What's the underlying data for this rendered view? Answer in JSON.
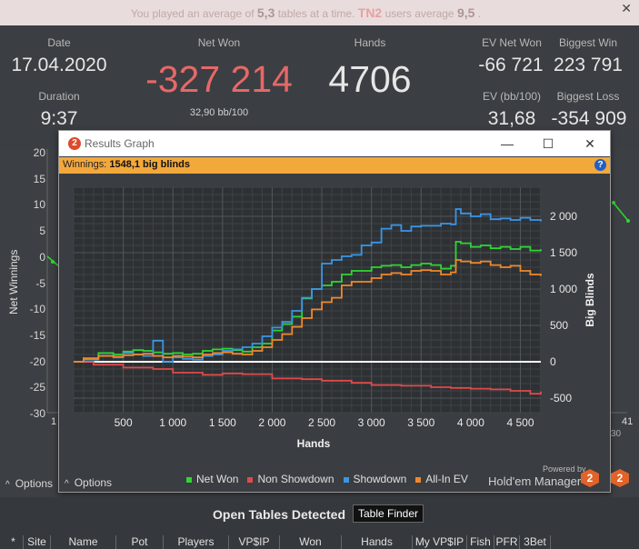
{
  "notice": {
    "prefix": "You played an average of",
    "avg_tables": "5,3",
    "middle": "tables at a time.",
    "site": "TN2",
    "suffix": "users average",
    "site_avg": "9,5",
    "end": ".",
    "close_glyph": "✕"
  },
  "stats": {
    "date_label": "Date",
    "date_value": "17.04.2020",
    "duration_label": "Duration",
    "duration_value": "9:37",
    "net_won_label": "Net Won",
    "net_won_value": "-327 214",
    "net_won_bb": "32,90 bb/100",
    "hands_label": "Hands",
    "hands_value": "4706",
    "ev_net_won_label": "EV Net Won",
    "ev_net_won_value": "-66 721",
    "ev_bb_label": "EV (bb/100)",
    "ev_bb_value": "31,68",
    "biggest_win_label": "Biggest Win",
    "biggest_win_value": "223 791",
    "biggest_loss_label": "Biggest Loss",
    "biggest_loss_value": "-354 909"
  },
  "background_graph": {
    "ylabel": "Net Winnings",
    "yticks": [
      "20",
      "15",
      "10",
      "5",
      "0",
      "-5",
      "-10",
      "-15",
      "-20",
      "-25",
      "-30"
    ],
    "x_first": "1",
    "x_last": "41",
    "x_last_partial": "30",
    "options_label": "Options"
  },
  "modal": {
    "title": "Results Graph",
    "badge": "2",
    "minimize": "—",
    "maximize": "☐",
    "close": "✕",
    "winnings_label": "Winnings:",
    "winnings_value": "1548,1 big blinds",
    "help": "?",
    "options_label": "Options",
    "powered_by": "Powered by",
    "brand": "Hold'em Manager",
    "brand_badge": "2"
  },
  "chart_data": {
    "type": "line",
    "xlabel": "Hands",
    "ylabel": "Big Blinds",
    "xlim": [
      0,
      4706
    ],
    "ylim": [
      -700,
      2400
    ],
    "xticks": [
      500,
      1000,
      1500,
      2000,
      2500,
      3000,
      3500,
      4000,
      4500
    ],
    "xtick_labels": [
      "500",
      "1 000",
      "1 500",
      "2 000",
      "2 500",
      "3 000",
      "3 500",
      "4 000",
      "4 500"
    ],
    "yticks": [
      -500,
      0,
      500,
      1000,
      1500,
      2000
    ],
    "ytick_labels": [
      "-500",
      "0",
      "500",
      "1 000",
      "1 500",
      "2 000"
    ],
    "grid": true,
    "legend_position": "bottom",
    "series": [
      {
        "name": "Net Won",
        "color": "#2fd633",
        "x": [
          0,
          100,
          250,
          400,
          500,
          600,
          700,
          800,
          900,
          1000,
          1100,
          1200,
          1300,
          1400,
          1500,
          1600,
          1700,
          1800,
          1900,
          2000,
          2100,
          2200,
          2300,
          2400,
          2500,
          2600,
          2700,
          2800,
          2900,
          3000,
          3100,
          3200,
          3300,
          3400,
          3500,
          3600,
          3700,
          3800,
          3850,
          3900,
          4000,
          4100,
          4200,
          4300,
          4400,
          4500,
          4600,
          4706
        ],
        "values": [
          0,
          50,
          120,
          100,
          140,
          160,
          150,
          130,
          110,
          120,
          100,
          110,
          150,
          170,
          180,
          160,
          140,
          200,
          250,
          430,
          520,
          620,
          870,
          1000,
          1050,
          1100,
          1200,
          1250,
          1250,
          1300,
          1320,
          1330,
          1300,
          1330,
          1350,
          1330,
          1280,
          1320,
          1650,
          1630,
          1580,
          1600,
          1560,
          1580,
          1550,
          1580,
          1530,
          1548
        ]
      },
      {
        "name": "Non Showdown",
        "color": "#e04a4a",
        "x": [
          0,
          200,
          500,
          800,
          1000,
          1300,
          1500,
          1700,
          2000,
          2300,
          2500,
          2800,
          3000,
          3300,
          3600,
          3800,
          4000,
          4200,
          4400,
          4600,
          4706
        ],
        "values": [
          0,
          -40,
          -80,
          -100,
          -150,
          -180,
          -160,
          -170,
          -230,
          -240,
          -260,
          -290,
          -320,
          -330,
          -350,
          -360,
          -370,
          -380,
          -400,
          -440,
          -410
        ]
      },
      {
        "name": "Showdown",
        "color": "#3a96e6",
        "x": [
          0,
          100,
          250,
          400,
          500,
          600,
          700,
          800,
          900,
          1000,
          1100,
          1200,
          1300,
          1400,
          1500,
          1600,
          1700,
          1800,
          1900,
          2000,
          2100,
          2200,
          2300,
          2400,
          2500,
          2600,
          2700,
          2800,
          2900,
          3000,
          3100,
          3200,
          3300,
          3400,
          3500,
          3600,
          3700,
          3800,
          3850,
          3900,
          4000,
          4100,
          4200,
          4300,
          4400,
          4500,
          4600,
          4706
        ],
        "values": [
          0,
          30,
          80,
          60,
          120,
          100,
          80,
          290,
          0,
          60,
          40,
          30,
          80,
          100,
          150,
          170,
          200,
          250,
          350,
          470,
          550,
          700,
          880,
          1000,
          1350,
          1400,
          1450,
          1470,
          1600,
          1640,
          1830,
          1880,
          1800,
          1860,
          1870,
          1870,
          1900,
          1890,
          2100,
          2040,
          2000,
          2030,
          1960,
          1970,
          1950,
          1980,
          1950,
          1930
        ]
      },
      {
        "name": "All-In EV",
        "color": "#f0882c",
        "x": [
          0,
          100,
          250,
          400,
          500,
          600,
          700,
          800,
          900,
          1000,
          1100,
          1200,
          1300,
          1400,
          1500,
          1600,
          1700,
          1800,
          1900,
          2000,
          2100,
          2200,
          2300,
          2400,
          2500,
          2600,
          2700,
          2800,
          2900,
          3000,
          3100,
          3200,
          3300,
          3400,
          3500,
          3600,
          3700,
          3800,
          3850,
          3900,
          4000,
          4100,
          4200,
          4300,
          4400,
          4500,
          4600,
          4706
        ],
        "values": [
          0,
          40,
          80,
          70,
          90,
          100,
          110,
          80,
          60,
          80,
          70,
          60,
          100,
          120,
          130,
          110,
          100,
          150,
          200,
          300,
          380,
          480,
          600,
          720,
          820,
          880,
          1050,
          1100,
          1100,
          1150,
          1200,
          1220,
          1200,
          1250,
          1260,
          1250,
          1200,
          1230,
          1400,
          1380,
          1360,
          1380,
          1330,
          1300,
          1320,
          1250,
          1200,
          1180
        ]
      }
    ]
  },
  "bottom": {
    "open_tables": "Open Tables Detected",
    "table_finder": "Table Finder",
    "columns": [
      "*",
      "Site",
      "Name",
      "Pot",
      "Players",
      "VP$IP",
      "Won",
      "Hands",
      "My VP$IP",
      "Fish",
      "PFR",
      "3Bet"
    ]
  }
}
